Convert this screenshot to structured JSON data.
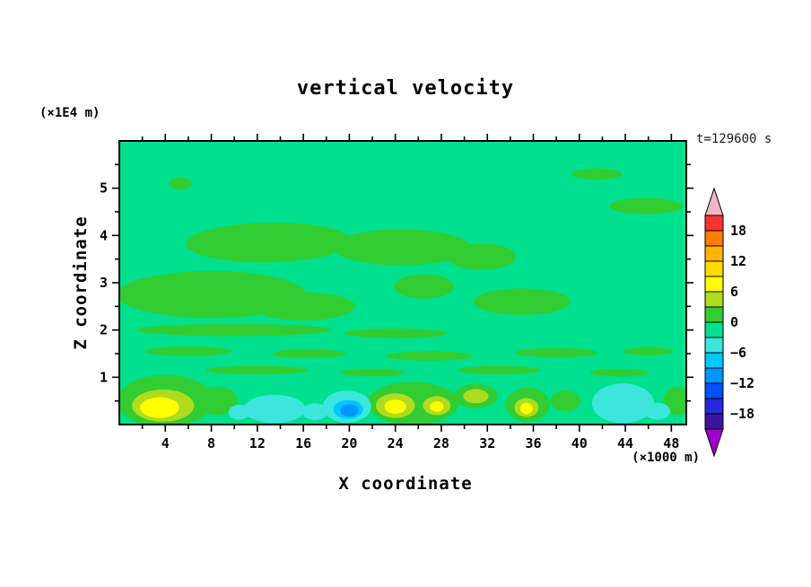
{
  "chart_data": {
    "type": "heatmap",
    "title": "vertical velocity",
    "time": "t=129600 s",
    "xlabel": "X coordinate",
    "x_unit": "(×1000 m)",
    "ylabel": "Z coordinate",
    "y_unit": "(×1E4 m)",
    "x_range": [
      0,
      49.3
    ],
    "y_range": [
      0,
      6
    ],
    "x_ticks_major": [
      4,
      8,
      12,
      16,
      20,
      24,
      28,
      32,
      36,
      40,
      44,
      48
    ],
    "x_ticks_minor_step": 2,
    "y_ticks_major": [
      1,
      2,
      3,
      4,
      5
    ],
    "y_ticks_minor_step": 0.5,
    "grid": false,
    "legend_position": "right-colorbar",
    "contour_interval": 3,
    "background_band": [
      -3,
      0
    ],
    "colorbar": {
      "labels": [
        18,
        12,
        6,
        0,
        -6,
        -12,
        -18
      ],
      "level_max": 21,
      "level_min": -21,
      "step": 3,
      "colors_top_to_bottom": [
        "#FF3232",
        "#FF7D00",
        "#FFB400",
        "#FFDC00",
        "#FFFF00",
        "#AFDC1E",
        "#32CD32",
        "#00E08F",
        "#3CE6DC",
        "#00C8FF",
        "#0096FF",
        "#0050FF",
        "#2828DC",
        "#3C14A0"
      ],
      "arrow_top_color": "#F2B4C8",
      "arrow_bottom_color": "#A000C8"
    },
    "features": [
      {
        "x": 5.3,
        "y": 5.1,
        "rx": 1.0,
        "ry": 0.13,
        "band": 1.5
      },
      {
        "x": 41.5,
        "y": 5.3,
        "rx": 2.2,
        "ry": 0.12,
        "band": 1.5
      },
      {
        "x": 45.8,
        "y": 4.62,
        "rx": 3.2,
        "ry": 0.17,
        "band": 1.5
      },
      {
        "x": 13,
        "y": 3.85,
        "rx": 7.2,
        "ry": 0.42,
        "rot": -1,
        "band": 1.5
      },
      {
        "x": 24.5,
        "y": 3.75,
        "rx": 6.0,
        "ry": 0.38,
        "band": 1.5
      },
      {
        "x": 31.5,
        "y": 3.55,
        "rx": 3.0,
        "ry": 0.28,
        "band": 1.5
      },
      {
        "x": 26.5,
        "y": 2.92,
        "rx": 2.6,
        "ry": 0.26,
        "band": 1.5
      },
      {
        "x": 8,
        "y": 2.75,
        "rx": 8.2,
        "ry": 0.5,
        "band": 1.5
      },
      {
        "x": 16,
        "y": 2.5,
        "rx": 4.5,
        "ry": 0.3,
        "band": 1.5
      },
      {
        "x": 35,
        "y": 2.6,
        "rx": 4.2,
        "ry": 0.28,
        "band": 1.5
      },
      {
        "x": 10,
        "y": 2.0,
        "rx": 8.5,
        "ry": 0.13,
        "band": 1.5
      },
      {
        "x": 24,
        "y": 1.93,
        "rx": 4.5,
        "ry": 0.1,
        "band": 1.5
      },
      {
        "x": 6,
        "y": 1.55,
        "rx": 3.8,
        "ry": 0.1,
        "band": 1.5
      },
      {
        "x": 16.5,
        "y": 1.5,
        "rx": 3.2,
        "ry": 0.09,
        "band": 1.5
      },
      {
        "x": 27,
        "y": 1.45,
        "rx": 3.8,
        "ry": 0.1,
        "band": 1.5
      },
      {
        "x": 38,
        "y": 1.52,
        "rx": 3.6,
        "ry": 0.1,
        "band": 1.5
      },
      {
        "x": 46,
        "y": 1.55,
        "rx": 2.2,
        "ry": 0.09,
        "band": 1.5
      },
      {
        "x": 12,
        "y": 1.15,
        "rx": 4.5,
        "ry": 0.09,
        "band": 1.5
      },
      {
        "x": 22,
        "y": 1.1,
        "rx": 2.8,
        "ry": 0.08,
        "band": 1.5
      },
      {
        "x": 33,
        "y": 1.15,
        "rx": 3.6,
        "ry": 0.09,
        "band": 1.5
      },
      {
        "x": 43.5,
        "y": 1.1,
        "rx": 2.6,
        "ry": 0.08,
        "band": 1.5
      },
      {
        "x": 4,
        "y": 0.5,
        "rx": 4.2,
        "ry": 0.55,
        "band": 1.5
      },
      {
        "x": 8.5,
        "y": 0.5,
        "rx": 1.8,
        "ry": 0.3,
        "band": 1.5
      },
      {
        "x": 25.5,
        "y": 0.45,
        "rx": 4.0,
        "ry": 0.45,
        "band": 1.5
      },
      {
        "x": 31,
        "y": 0.6,
        "rx": 1.9,
        "ry": 0.26,
        "band": 1.5
      },
      {
        "x": 35.5,
        "y": 0.42,
        "rx": 1.9,
        "ry": 0.36,
        "band": 1.5
      },
      {
        "x": 38.8,
        "y": 0.5,
        "rx": 1.3,
        "ry": 0.22,
        "band": 1.5
      },
      {
        "x": 48.6,
        "y": 0.5,
        "rx": 1.3,
        "ry": 0.3,
        "band": 1.5
      },
      {
        "x": 13.5,
        "y": 0.33,
        "rx": 2.7,
        "ry": 0.3,
        "band": -4.5
      },
      {
        "x": 10.4,
        "y": 0.26,
        "rx": 0.9,
        "ry": 0.16,
        "band": -4.5
      },
      {
        "x": 17,
        "y": 0.27,
        "rx": 1.1,
        "ry": 0.18,
        "band": -4.5
      },
      {
        "x": 19.8,
        "y": 0.38,
        "rx": 2.1,
        "ry": 0.34,
        "band": -4.5
      },
      {
        "x": 43.8,
        "y": 0.45,
        "rx": 2.7,
        "ry": 0.42,
        "band": -4.5
      },
      {
        "x": 46.8,
        "y": 0.28,
        "rx": 1.1,
        "ry": 0.18,
        "band": -4.5
      },
      {
        "x": 3.8,
        "y": 0.4,
        "rx": 2.7,
        "ry": 0.34,
        "band": 4.5
      },
      {
        "x": 24,
        "y": 0.4,
        "rx": 1.7,
        "ry": 0.26,
        "band": 4.5
      },
      {
        "x": 27.6,
        "y": 0.4,
        "rx": 1.2,
        "ry": 0.2,
        "band": 4.5
      },
      {
        "x": 31,
        "y": 0.6,
        "rx": 1.1,
        "ry": 0.15,
        "band": 4.5
      },
      {
        "x": 35.4,
        "y": 0.36,
        "rx": 1.05,
        "ry": 0.2,
        "band": 4.5
      },
      {
        "x": 19.9,
        "y": 0.32,
        "rx": 1.3,
        "ry": 0.2,
        "band": -7.5
      },
      {
        "x": 3.5,
        "y": 0.36,
        "rx": 1.7,
        "ry": 0.22,
        "band": 7.5
      },
      {
        "x": 24,
        "y": 0.38,
        "rx": 0.95,
        "ry": 0.15,
        "band": 7.5
      },
      {
        "x": 27.6,
        "y": 0.38,
        "rx": 0.6,
        "ry": 0.11,
        "band": 7.5
      },
      {
        "x": 35.4,
        "y": 0.34,
        "rx": 0.55,
        "ry": 0.12,
        "band": 7.5
      },
      {
        "x": 20,
        "y": 0.3,
        "rx": 0.8,
        "ry": 0.13,
        "band": -10.5
      }
    ]
  }
}
